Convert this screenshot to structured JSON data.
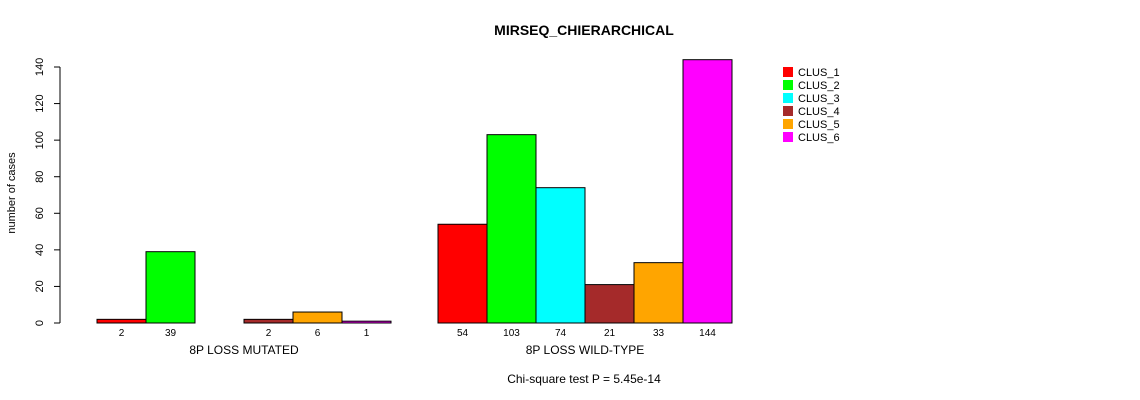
{
  "chart_data": {
    "type": "bar",
    "title": "MIRSEQ_CHIERARCHICAL",
    "ylabel": "number of cases",
    "xlabel": "",
    "ylim": [
      0,
      140
    ],
    "yticks": [
      0,
      20,
      40,
      60,
      80,
      100,
      120,
      140
    ],
    "groups": [
      "8P LOSS MUTATED",
      "8P LOSS WILD-TYPE"
    ],
    "series": [
      {
        "name": "CLUS_1",
        "color": "#ff0000",
        "values": [
          2,
          54
        ]
      },
      {
        "name": "CLUS_2",
        "color": "#00ff00",
        "values": [
          39,
          103
        ]
      },
      {
        "name": "CLUS_3",
        "color": "#00ffff",
        "values": [
          0,
          74
        ]
      },
      {
        "name": "CLUS_4",
        "color": "#a52a2a",
        "values": [
          2,
          21
        ]
      },
      {
        "name": "CLUS_5",
        "color": "#ffa500",
        "values": [
          6,
          33
        ]
      },
      {
        "name": "CLUS_6",
        "color": "#ff00ff",
        "values": [
          1,
          144
        ]
      }
    ],
    "count_labels": [
      [
        "2",
        "39",
        "",
        "2",
        "6",
        "1"
      ],
      [
        "54",
        "103",
        "74",
        "21",
        "33",
        "144"
      ]
    ],
    "legend_position": "top-right",
    "footnote": "Chi-square test P = 5.45e-14"
  }
}
